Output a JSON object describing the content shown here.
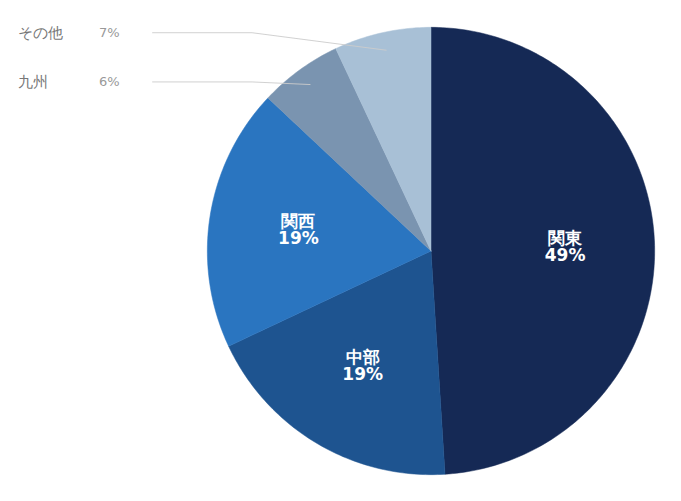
{
  "chart_data": {
    "type": "pie",
    "categories": [
      "関東",
      "中部",
      "関西",
      "九州",
      "その他"
    ],
    "values": [
      49,
      19,
      19,
      6,
      7
    ],
    "value_labels": [
      "49%",
      "19%",
      "19%",
      "6%",
      "7%"
    ],
    "colors": [
      "#152955",
      "#1e5490",
      "#2a75c0",
      "#7a94b0",
      "#a8c0d6"
    ],
    "data_labels": true
  }
}
